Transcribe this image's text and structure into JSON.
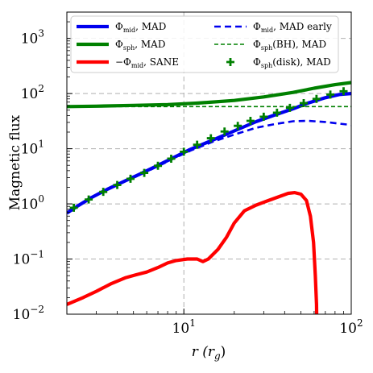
{
  "chart_data": {
    "type": "line",
    "xscale": "log",
    "yscale": "log",
    "xlim": [
      2,
      100
    ],
    "ylim": [
      0.01,
      3000
    ],
    "xlabel": "r (r_g)",
    "ylabel": "Magnetic flux",
    "grid": true,
    "legend_placement": "top, two columns",
    "x_ticks": [
      {
        "base": "10",
        "exp": "1",
        "value": 10
      },
      {
        "base": "10",
        "exp": "2",
        "value": 100
      }
    ],
    "y_ticks": [
      {
        "base": "10",
        "exp": "−2",
        "value": 0.01
      },
      {
        "base": "10",
        "exp": "−1",
        "value": 0.1
      },
      {
        "base": "10",
        "exp": "0",
        "value": 1
      },
      {
        "base": "10",
        "exp": "1",
        "value": 10
      },
      {
        "base": "10",
        "exp": "2",
        "value": 100
      },
      {
        "base": "10",
        "exp": "3",
        "value": 1000
      }
    ],
    "series": [
      {
        "name": "Φ_mid, MAD",
        "color": "#0000ee",
        "style": "solid-thick",
        "x": [
          2.0,
          2.3,
          2.8,
          3.5,
          4.5,
          5.5,
          7.0,
          9.0,
          11.0,
          15.0,
          20.0,
          27.0,
          35.0,
          45.0,
          55.0,
          70.0,
          85.0,
          100.0
        ],
        "y": [
          0.68,
          0.9,
          1.3,
          1.85,
          2.65,
          3.5,
          5.0,
          7.3,
          9.8,
          14.5,
          21.0,
          31.0,
          41.0,
          53.0,
          67.0,
          84.0,
          96.0,
          100.0
        ]
      },
      {
        "name": "Φ_mid, MAD early",
        "color": "#0000ee",
        "style": "dashed",
        "x": [
          2.0,
          2.3,
          2.8,
          3.5,
          4.5,
          5.5,
          7.0,
          9.0,
          11.0,
          15.0,
          20.0,
          27.0,
          35.0,
          45.0,
          55.0,
          70.0,
          85.0,
          100.0
        ],
        "y": [
          0.68,
          0.9,
          1.3,
          1.85,
          2.6,
          3.4,
          4.8,
          7.0,
          9.3,
          13.5,
          18.0,
          24.0,
          28.0,
          31.5,
          32.0,
          30.5,
          28.5,
          27.0
        ]
      },
      {
        "name": "Φ_sph, MAD",
        "color": "#008000",
        "style": "solid-thick",
        "x": [
          2.0,
          3.0,
          5.0,
          8.0,
          12.0,
          20.0,
          30.0,
          45.0,
          60.0,
          80.0,
          100.0
        ],
        "y": [
          58.0,
          59.0,
          61.0,
          63.0,
          67.0,
          75.0,
          87.0,
          105.0,
          125.0,
          145.0,
          158.0
        ]
      },
      {
        "name": "Φ_sph(BH), MAD",
        "color": "#008000",
        "style": "dashed",
        "x": [
          2.0,
          100.0
        ],
        "y": [
          58.0,
          58.0
        ]
      },
      {
        "name": "−Φ_mid, SANE",
        "color": "#ff0000",
        "style": "solid-thick",
        "x": [
          2.0,
          2.5,
          3.0,
          3.7,
          4.5,
          5.2,
          6.0,
          7.0,
          8.0,
          9.0,
          10.5,
          12.0,
          13.0,
          14.0,
          16.0,
          18.0,
          20.0,
          23.0,
          27.0,
          32.0,
          37.0,
          42.0,
          46.0,
          50.0,
          54.0,
          57.0,
          59.5,
          61.0,
          62.0,
          62.3
        ],
        "y": [
          0.015,
          0.02,
          0.026,
          0.036,
          0.046,
          0.052,
          0.058,
          0.07,
          0.085,
          0.094,
          0.1,
          0.1,
          0.09,
          0.1,
          0.15,
          0.25,
          0.45,
          0.75,
          0.95,
          1.15,
          1.35,
          1.55,
          1.6,
          1.5,
          1.15,
          0.6,
          0.2,
          0.05,
          0.015,
          0.005
        ]
      },
      {
        "name": "Φ_sph(disk), MAD",
        "color": "#008000",
        "style": "plus-markers",
        "x": [
          2.2,
          2.7,
          3.3,
          4.0,
          4.8,
          5.8,
          7.0,
          8.4,
          10.0,
          12.0,
          14.5,
          17.5,
          21.0,
          25.0,
          30.0,
          36.0,
          43.0,
          52.0,
          62.0,
          75.0,
          90.0
        ],
        "y": [
          0.85,
          1.2,
          1.65,
          2.2,
          2.85,
          3.65,
          4.9,
          6.6,
          8.8,
          11.8,
          15.5,
          20.5,
          26.0,
          32.0,
          38.0,
          45.0,
          55.0,
          67.0,
          80.0,
          96.0,
          110.0
        ]
      }
    ]
  },
  "legend": [
    {
      "main": "Φ",
      "sub": "mid",
      "rest": ", MAD",
      "color": "#0000ee",
      "style": "solid-thick"
    },
    {
      "main": "Φ",
      "sub": "mid",
      "rest": ", MAD early",
      "color": "#0000ee",
      "style": "dashed"
    },
    {
      "main": "Φ",
      "sub": "sph",
      "rest": ", MAD",
      "color": "#008000",
      "style": "solid-thick"
    },
    {
      "main": "Φ",
      "sub": "sph",
      "rest": "(BH), MAD",
      "color": "#008000",
      "style": "dashed"
    },
    {
      "main": "−Φ",
      "sub": "mid",
      "rest": ", SANE",
      "color": "#ff0000",
      "style": "solid-thick"
    },
    {
      "main": "Φ",
      "sub": "sph",
      "rest": "(disk), MAD",
      "color": "#008000",
      "style": "plus-markers"
    }
  ],
  "axis_labels": {
    "x_main": "r (r",
    "x_sub": "g",
    "x_close": ")",
    "y": "Magnetic flux"
  }
}
